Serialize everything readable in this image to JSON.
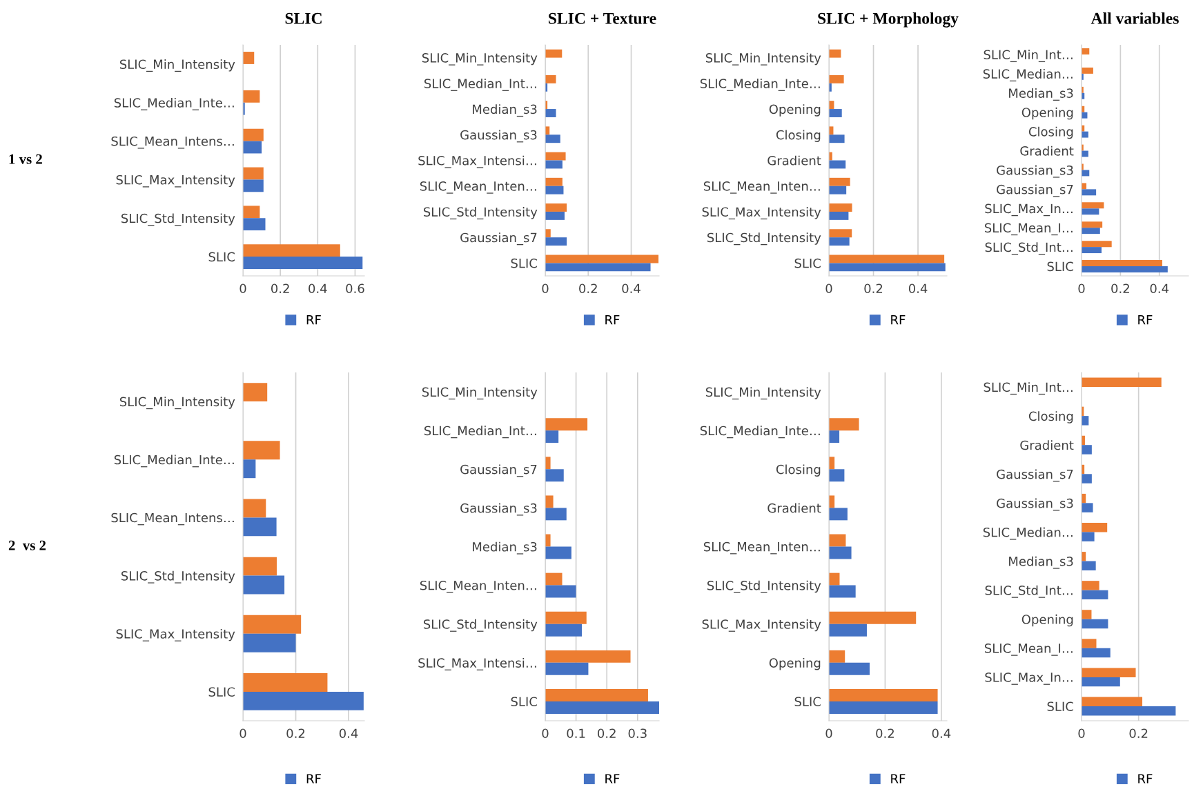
{
  "chart_data": [
    {
      "type": "bar",
      "orientation": "horizontal",
      "title": "SLIC",
      "annotations": [
        "1 vs 2"
      ],
      "grid": "x",
      "legend": "bottom",
      "xlim": [
        0,
        0.65
      ],
      "xticks": [
        0,
        0.2,
        0.4,
        0.6
      ],
      "categories": [
        "SLIC_Min_Intensity",
        "SLIC_Median_Inte…",
        "SLIC_Mean_Intens…",
        "SLIC_Max_Intensity",
        "SLIC_Std_Intensity",
        "SLIC"
      ],
      "series": [
        {
          "color": "#ed7d31",
          "values": [
            0.06,
            0.09,
            0.11,
            0.11,
            0.09,
            0.52
          ]
        },
        {
          "name": "RF",
          "color": "#4472c4",
          "values": [
            null,
            0.01,
            0.1,
            0.11,
            0.12,
            0.64
          ]
        }
      ]
    },
    {
      "type": "bar",
      "orientation": "horizontal",
      "title": "SLIC + Texture",
      "grid": "x",
      "legend": "bottom",
      "xlim": [
        0,
        0.53
      ],
      "xticks": [
        0,
        0.2,
        0.4
      ],
      "categories": [
        "SLIC_Min_Intensity",
        "SLIC_Median_Int…",
        "Median_s3",
        "Gaussian_s3",
        "SLIC_Max_Intensi…",
        "SLIC_Mean_Inten…",
        "SLIC_Std_Intensity",
        "Gaussian_s7",
        "SLIC"
      ],
      "series": [
        {
          "color": "#ed7d31",
          "values": [
            0.078,
            0.05,
            0.01,
            0.02,
            0.095,
            0.08,
            0.1,
            0.025,
            0.527
          ]
        },
        {
          "name": "RF",
          "color": "#4472c4",
          "values": [
            null,
            0.01,
            0.05,
            0.07,
            0.08,
            0.085,
            0.09,
            0.1,
            0.49
          ]
        }
      ]
    },
    {
      "type": "bar",
      "orientation": "horizontal",
      "title": "SLIC + Morphology",
      "grid": "x",
      "legend": "bottom",
      "xlim": [
        0,
        0.53
      ],
      "xticks": [
        0,
        0.2,
        0.4
      ],
      "categories": [
        "SLIC_Min_Intensity",
        "SLIC_Median_Inte…",
        "Opening",
        "Closing",
        "Gradient",
        "SLIC_Mean_Inten…",
        "SLIC_Max_Intensity",
        "SLIC_Std_Intensity",
        "SLIC"
      ],
      "series": [
        {
          "color": "#ed7d31",
          "values": [
            0.054,
            0.067,
            0.023,
            0.02,
            0.015,
            0.095,
            0.104,
            0.103,
            0.518
          ]
        },
        {
          "name": "RF",
          "color": "#4472c4",
          "values": [
            null,
            0.012,
            0.058,
            0.07,
            0.075,
            0.078,
            0.088,
            0.092,
            0.523
          ]
        }
      ]
    },
    {
      "type": "bar",
      "orientation": "horizontal",
      "title": "All variables",
      "grid": "x",
      "legend": "bottom",
      "xlim": [
        0,
        0.55
      ],
      "xticks": [
        0,
        0.2,
        0.4
      ],
      "categories": [
        "SLIC_Min_Int…",
        "SLIC_Median…",
        "Median_s3",
        "Opening",
        "Closing",
        "Gradient",
        "Gaussian_s3",
        "Gaussian_s7",
        "SLIC_Max_In…",
        "SLIC_Mean_I…",
        "SLIC_Std_Int…",
        "SLIC"
      ],
      "series": [
        {
          "color": "#ed7d31",
          "values": [
            0.04,
            0.06,
            0.01,
            0.015,
            0.015,
            0.01,
            0.01,
            0.025,
            0.115,
            0.107,
            0.155,
            0.415
          ]
        },
        {
          "name": "RF",
          "color": "#4472c4",
          "values": [
            null,
            0.01,
            0.015,
            0.03,
            0.035,
            0.035,
            0.04,
            0.075,
            0.09,
            0.095,
            0.103,
            0.443
          ]
        }
      ]
    },
    {
      "type": "bar",
      "orientation": "horizontal",
      "annotations": [
        "2  vs 2"
      ],
      "grid": "x",
      "legend": "bottom",
      "xlim": [
        0,
        0.46
      ],
      "xticks": [
        0,
        0.2,
        0.4
      ],
      "categories": [
        "SLIC_Min_Intensity",
        "SLIC_Median_Inte…",
        "SLIC_Mean_Intens…",
        "SLIC_Std_Intensity",
        "SLIC_Max_Intensity",
        "SLIC"
      ],
      "series": [
        {
          "color": "#ed7d31",
          "values": [
            0.092,
            0.14,
            0.087,
            0.128,
            0.22,
            0.32
          ]
        },
        {
          "name": "RF",
          "color": "#4472c4",
          "values": [
            null,
            0.048,
            0.127,
            0.157,
            0.2,
            0.457
          ]
        }
      ]
    },
    {
      "type": "bar",
      "orientation": "horizontal",
      "grid": "x",
      "legend": "bottom",
      "xlim": [
        0,
        0.37
      ],
      "xticks": [
        0,
        0.1,
        0.2,
        0.3
      ],
      "categories": [
        "SLIC_Min_Intensity",
        "SLIC_Median_Int…",
        "Gaussian_s7",
        "Gaussian_s3",
        "Median_s3",
        "SLIC_Mean_Inten…",
        "SLIC_Std_Intensity",
        "SLIC_Max_Intensi…",
        "SLIC"
      ],
      "series": [
        {
          "color": "#ed7d31",
          "values": [
            null,
            0.137,
            0.017,
            0.026,
            0.017,
            0.055,
            0.134,
            0.277,
            0.334
          ]
        },
        {
          "name": "RF",
          "color": "#4472c4",
          "values": [
            null,
            0.043,
            0.06,
            0.069,
            0.085,
            0.1,
            0.119,
            0.14,
            0.37
          ]
        }
      ]
    },
    {
      "type": "bar",
      "orientation": "horizontal",
      "grid": "x",
      "legend": "bottom",
      "xlim": [
        0,
        0.42
      ],
      "xticks": [
        0,
        0.2,
        0.4
      ],
      "categories": [
        "SLIC_Min_Intensity",
        "SLIC_Median_Inte…",
        "Closing",
        "Gradient",
        "SLIC_Mean_Inten…",
        "SLIC_Std_Intensity",
        "SLIC_Max_Intensity",
        "Opening",
        "SLIC"
      ],
      "series": [
        {
          "color": "#ed7d31",
          "values": [
            null,
            0.107,
            0.02,
            0.02,
            0.06,
            0.038,
            0.31,
            0.057,
            0.387
          ]
        },
        {
          "name": "RF",
          "color": "#4472c4",
          "values": [
            null,
            0.037,
            0.055,
            0.066,
            0.08,
            0.095,
            0.135,
            0.145,
            0.387
          ]
        }
      ]
    },
    {
      "type": "bar",
      "orientation": "horizontal",
      "grid": "x",
      "legend": "bottom",
      "xlim": [
        0,
        0.375
      ],
      "xticks": [
        0,
        0.2
      ],
      "categories": [
        "SLIC_Min_Int…",
        "Closing",
        "Gradient",
        "Gaussian_s7",
        "Gaussian_s3",
        "SLIC_Median…",
        "Median_s3",
        "SLIC_Std_Int…",
        "Opening",
        "SLIC_Mean_I…",
        "SLIC_Max_In…",
        "SLIC"
      ],
      "series": [
        {
          "color": "#ed7d31",
          "values": [
            0.28,
            0.008,
            0.012,
            0.01,
            0.015,
            0.09,
            0.015,
            0.062,
            0.035,
            0.052,
            0.19,
            0.213
          ]
        },
        {
          "name": "RF",
          "color": "#4472c4",
          "values": [
            null,
            0.025,
            0.036,
            0.036,
            0.04,
            0.045,
            0.05,
            0.093,
            0.093,
            0.101,
            0.135,
            0.33
          ]
        }
      ]
    }
  ]
}
